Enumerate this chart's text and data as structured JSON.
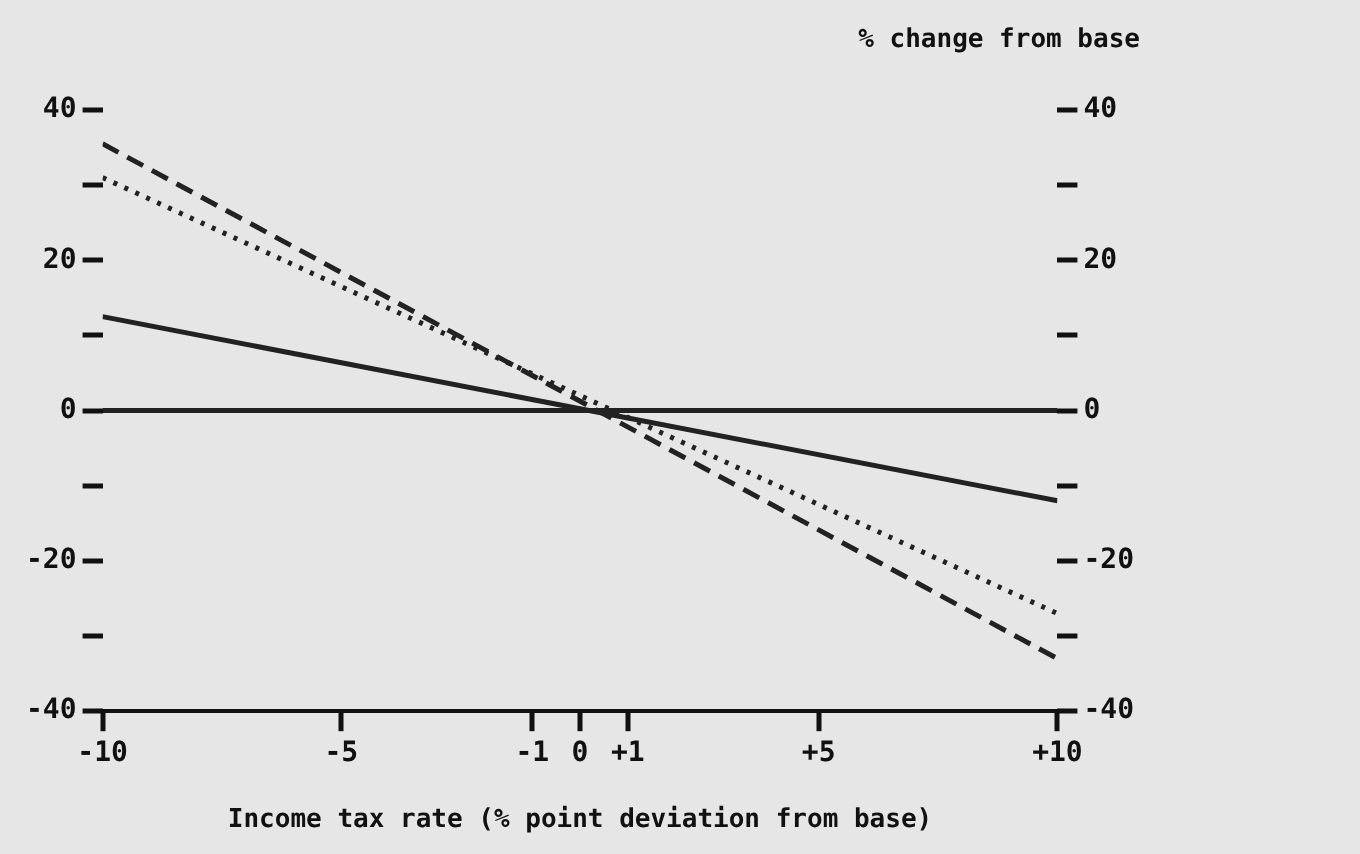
{
  "chart_data": {
    "type": "line",
    "xlabel": "Income tax rate (% point deviation from base)",
    "y2label": "% change from base",
    "x": [
      -10,
      10
    ],
    "series": [
      {
        "color": "#222222",
        "values": [
          0,
          0
        ],
        "line_style": "solid"
      },
      {
        "color": "#222222",
        "values": [
          12.5,
          -12
        ],
        "line_style": "solid"
      },
      {
        "color": "#222222",
        "values": [
          35.5,
          -33
        ],
        "line_style": "dashed"
      },
      {
        "color": "#222222",
        "values": [
          31,
          -27
        ],
        "line_style": "dotted"
      }
    ],
    "xlim": [
      -10,
      10
    ],
    "xticks": [
      -10,
      -5,
      -1,
      0,
      {
        "value": 1,
        "label": "+1"
      },
      {
        "value": 5,
        "label": "+5"
      },
      {
        "value": 10,
        "label": "+10"
      }
    ],
    "ylim": [
      -40,
      40
    ],
    "yticks": [
      -40,
      {
        "value": -30,
        "label": null
      },
      -20,
      {
        "value": -10,
        "label": null
      },
      0,
      {
        "value": 10,
        "label": null
      },
      20,
      {
        "value": 30,
        "label": null
      },
      40
    ],
    "y2lim": [
      -40,
      40
    ],
    "y2ticks": [
      -40,
      {
        "value": -30,
        "label": null
      },
      -20,
      {
        "value": -10,
        "label": null
      },
      0,
      {
        "value": 10,
        "label": null
      },
      20,
      {
        "value": 30,
        "label": null
      },
      40
    ],
    "grid": false,
    "legend": false,
    "marker": "none"
  }
}
